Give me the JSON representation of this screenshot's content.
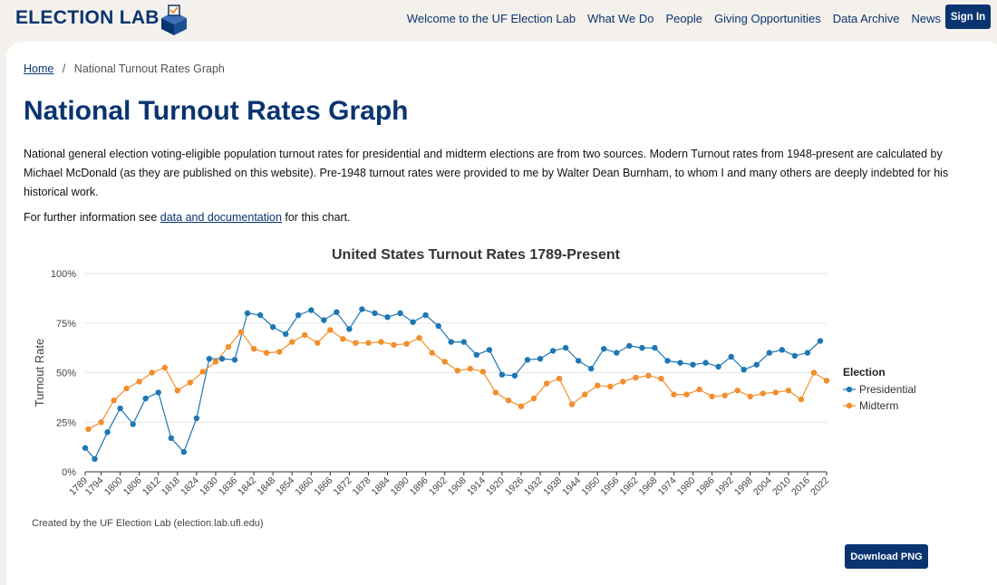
{
  "header": {
    "logo_text": "ELECTION LAB",
    "nav": [
      "Welcome to the UF Election Lab",
      "What We Do",
      "People",
      "Giving Opportunities",
      "Data Archive",
      "News"
    ],
    "signin": "Sign In"
  },
  "breadcrumb": {
    "home": "Home",
    "separator": "/",
    "current": "National Turnout Rates Graph"
  },
  "page_title": "National Turnout Rates Graph",
  "intro": "National general election voting-eligible population turnout rates for presidential and midterm elections are from two sources. Modern Turnout rates from 1948-present are calculated by Michael McDonald (as they are published on this website). Pre-1948 turnout rates were provided to me by Walter Dean Burnham, to whom I and many others are deeply indebted for his historical work.",
  "further": {
    "prefix": "For further information see ",
    "link": "data and documentation",
    "suffix": " for this chart."
  },
  "credit": "Created by the UF Election Lab (election.lab.ufl.edu)",
  "download_label": "Download PNG",
  "colors": {
    "brand": "#0a3470",
    "presidential": "#1f77b4",
    "midterm": "#f28e2b"
  },
  "chart_data": {
    "type": "line",
    "title": "United States Turnout Rates 1789-Present",
    "xlabel": "",
    "ylabel": "Turnout Rate",
    "ylim": [
      0,
      1
    ],
    "yticks": [
      "0%",
      "25%",
      "50%",
      "75%",
      "100%"
    ],
    "xticks": [
      1789,
      1794,
      1800,
      1806,
      1812,
      1818,
      1824,
      1830,
      1836,
      1842,
      1848,
      1854,
      1860,
      1866,
      1872,
      1878,
      1884,
      1890,
      1896,
      1902,
      1908,
      1914,
      1920,
      1926,
      1932,
      1938,
      1944,
      1950,
      1956,
      1962,
      1968,
      1974,
      1980,
      1986,
      1992,
      1998,
      2004,
      2010,
      2016,
      2022
    ],
    "xlim": [
      1789,
      2022
    ],
    "legend_title": "Election",
    "legend_position": "right",
    "grid": true,
    "series": [
      {
        "name": "Presidential",
        "color": "#1f77b4",
        "points": [
          [
            1789,
            0.12
          ],
          [
            1792,
            0.065
          ],
          [
            1796,
            0.2
          ],
          [
            1800,
            0.32
          ],
          [
            1804,
            0.24
          ],
          [
            1808,
            0.37
          ],
          [
            1812,
            0.4
          ],
          [
            1816,
            0.17
          ],
          [
            1820,
            0.1
          ],
          [
            1824,
            0.27
          ],
          [
            1828,
            0.57
          ],
          [
            1832,
            0.57
          ],
          [
            1836,
            0.565
          ],
          [
            1840,
            0.8
          ],
          [
            1844,
            0.79
          ],
          [
            1848,
            0.73
          ],
          [
            1852,
            0.695
          ],
          [
            1856,
            0.79
          ],
          [
            1860,
            0.815
          ],
          [
            1864,
            0.765
          ],
          [
            1868,
            0.805
          ],
          [
            1872,
            0.72
          ],
          [
            1876,
            0.82
          ],
          [
            1880,
            0.8
          ],
          [
            1884,
            0.78
          ],
          [
            1888,
            0.8
          ],
          [
            1892,
            0.755
          ],
          [
            1896,
            0.79
          ],
          [
            1900,
            0.735
          ],
          [
            1904,
            0.655
          ],
          [
            1908,
            0.655
          ],
          [
            1912,
            0.59
          ],
          [
            1916,
            0.615
          ],
          [
            1920,
            0.49
          ],
          [
            1924,
            0.485
          ],
          [
            1928,
            0.565
          ],
          [
            1932,
            0.57
          ],
          [
            1936,
            0.61
          ],
          [
            1940,
            0.625
          ],
          [
            1944,
            0.56
          ],
          [
            1948,
            0.52
          ],
          [
            1952,
            0.62
          ],
          [
            1956,
            0.6
          ],
          [
            1960,
            0.635
          ],
          [
            1964,
            0.625
          ],
          [
            1968,
            0.625
          ],
          [
            1972,
            0.56
          ],
          [
            1976,
            0.55
          ],
          [
            1980,
            0.54
          ],
          [
            1984,
            0.55
          ],
          [
            1988,
            0.53
          ],
          [
            1992,
            0.58
          ],
          [
            1996,
            0.515
          ],
          [
            2000,
            0.54
          ],
          [
            2004,
            0.6
          ],
          [
            2008,
            0.615
          ],
          [
            2012,
            0.585
          ],
          [
            2016,
            0.6
          ],
          [
            2020,
            0.66
          ]
        ]
      },
      {
        "name": "Midterm",
        "color": "#f28e2b",
        "points": [
          [
            1790,
            0.215
          ],
          [
            1794,
            0.25
          ],
          [
            1798,
            0.36
          ],
          [
            1802,
            0.42
          ],
          [
            1806,
            0.455
          ],
          [
            1810,
            0.5
          ],
          [
            1814,
            0.525
          ],
          [
            1818,
            0.41
          ],
          [
            1822,
            0.45
          ],
          [
            1826,
            0.505
          ],
          [
            1830,
            0.555
          ],
          [
            1834,
            0.63
          ],
          [
            1838,
            0.705
          ],
          [
            1842,
            0.62
          ],
          [
            1846,
            0.6
          ],
          [
            1850,
            0.605
          ],
          [
            1854,
            0.655
          ],
          [
            1858,
            0.69
          ],
          [
            1862,
            0.65
          ],
          [
            1866,
            0.715
          ],
          [
            1870,
            0.67
          ],
          [
            1874,
            0.65
          ],
          [
            1878,
            0.65
          ],
          [
            1882,
            0.655
          ],
          [
            1886,
            0.64
          ],
          [
            1890,
            0.645
          ],
          [
            1894,
            0.675
          ],
          [
            1898,
            0.6
          ],
          [
            1902,
            0.555
          ],
          [
            1906,
            0.51
          ],
          [
            1910,
            0.52
          ],
          [
            1914,
            0.505
          ],
          [
            1918,
            0.4
          ],
          [
            1922,
            0.36
          ],
          [
            1926,
            0.33
          ],
          [
            1930,
            0.37
          ],
          [
            1934,
            0.445
          ],
          [
            1938,
            0.47
          ],
          [
            1942,
            0.34
          ],
          [
            1946,
            0.39
          ],
          [
            1950,
            0.435
          ],
          [
            1954,
            0.43
          ],
          [
            1958,
            0.455
          ],
          [
            1962,
            0.475
          ],
          [
            1966,
            0.485
          ],
          [
            1970,
            0.47
          ],
          [
            1974,
            0.39
          ],
          [
            1978,
            0.39
          ],
          [
            1982,
            0.415
          ],
          [
            1986,
            0.38
          ],
          [
            1990,
            0.385
          ],
          [
            1994,
            0.41
          ],
          [
            1998,
            0.38
          ],
          [
            2002,
            0.395
          ],
          [
            2006,
            0.4
          ],
          [
            2010,
            0.41
          ],
          [
            2014,
            0.365
          ],
          [
            2018,
            0.5
          ],
          [
            2022,
            0.46
          ]
        ]
      }
    ]
  }
}
